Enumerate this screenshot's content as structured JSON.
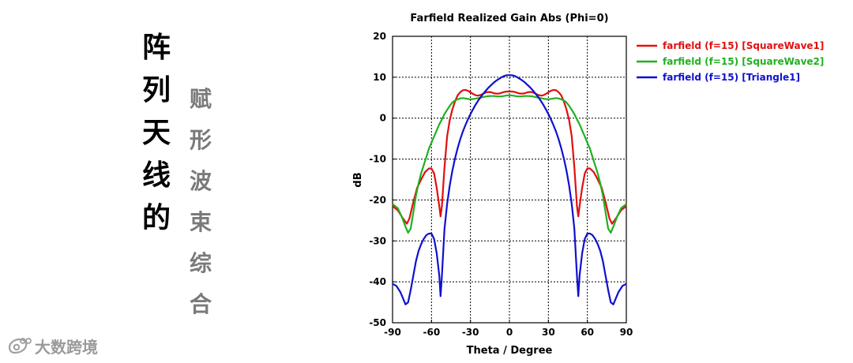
{
  "side_title": {
    "main": [
      "阵",
      "列",
      "天",
      "线",
      "的"
    ],
    "sub": [
      "赋",
      "形",
      "波",
      "束",
      "综",
      "合"
    ]
  },
  "watermark": {
    "text": "大数跨境",
    "logo": "weibo-icon"
  },
  "chart_data": {
    "type": "line",
    "title": "Farfield Realized Gain Abs (Phi=0)",
    "xlabel": "Theta / Degree",
    "ylabel": "dB",
    "xlim": [
      -90,
      90
    ],
    "ylim": [
      -50,
      20
    ],
    "xticks": [
      -90,
      -60,
      -30,
      0,
      30,
      60,
      90
    ],
    "yticks": [
      20,
      10,
      0,
      -10,
      -20,
      -30,
      -40,
      -50
    ],
    "grid": true,
    "legend_position": "right",
    "series": [
      {
        "name": "farfield (f=15) [SquareWave1]",
        "color": "#e01010",
        "x": [
          -90,
          -86,
          -82,
          -79,
          -77,
          -74,
          -71,
          -68,
          -65,
          -62,
          -60,
          -58,
          -56,
          -54,
          -53,
          -52,
          -50,
          -48,
          -46,
          -44,
          -42,
          -40,
          -38,
          -36,
          -34,
          -32,
          -30,
          -28,
          -26,
          -24,
          -22,
          -20,
          -18,
          -16,
          -14,
          -12,
          -10,
          -8,
          -6,
          -4,
          -2,
          0,
          2,
          4,
          6,
          8,
          10,
          12,
          14,
          16,
          18,
          20,
          22,
          24,
          26,
          28,
          30,
          32,
          34,
          36,
          38,
          40,
          42,
          44,
          46,
          48,
          50,
          52,
          53,
          54,
          56,
          58,
          60,
          62,
          65,
          68,
          71,
          74,
          77,
          79,
          82,
          86,
          90
        ],
        "values": [
          -21.5,
          -22.5,
          -24.5,
          -25.8,
          -24.5,
          -20.5,
          -17,
          -15,
          -13.2,
          -12.3,
          -12.3,
          -13.5,
          -17,
          -21.5,
          -24,
          -21.5,
          -12,
          -4.5,
          -0.5,
          2,
          4,
          5.5,
          6.3,
          6.8,
          6.9,
          6.7,
          6.3,
          5.9,
          5.6,
          5.5,
          5.7,
          6,
          6.3,
          6.4,
          6.3,
          6.1,
          6,
          6,
          6.2,
          6.4,
          6.5,
          6.5,
          6.5,
          6.4,
          6.2,
          6,
          6,
          6.1,
          6.3,
          6.4,
          6.3,
          6,
          5.7,
          5.5,
          5.6,
          5.9,
          6.3,
          6.7,
          6.9,
          6.8,
          6.3,
          5.5,
          4,
          2,
          -0.5,
          -4.5,
          -12,
          -21.5,
          -24,
          -21.5,
          -17,
          -13.5,
          -12.3,
          -12.3,
          -13.2,
          -15,
          -17,
          -20.5,
          -24.5,
          -25.8,
          -24.5,
          -22.5,
          -21.5
        ]
      },
      {
        "name": "farfield (f=15) [SquareWave2]",
        "color": "#20b020",
        "x": [
          -90,
          -86,
          -83,
          -80,
          -78,
          -76,
          -74,
          -72,
          -70,
          -68,
          -66,
          -64,
          -62,
          -60,
          -58,
          -56,
          -54,
          -52,
          -50,
          -48,
          -46,
          -44,
          -42,
          -40,
          -38,
          -36,
          -34,
          -32,
          -30,
          -27,
          -24,
          -21,
          -18,
          -15,
          -12,
          -9,
          -6,
          -3,
          0,
          3,
          6,
          9,
          12,
          15,
          18,
          21,
          24,
          27,
          30,
          32,
          34,
          36,
          38,
          40,
          42,
          44,
          46,
          48,
          50,
          52,
          54,
          56,
          58,
          60,
          62,
          64,
          66,
          68,
          70,
          72,
          74,
          76,
          78,
          80,
          83,
          86,
          90
        ],
        "values": [
          -21,
          -22,
          -24,
          -26.5,
          -28,
          -27,
          -23,
          -19,
          -16,
          -13.5,
          -11.5,
          -9.5,
          -7.5,
          -6,
          -4.5,
          -3,
          -1.5,
          -0.3,
          1,
          2,
          3,
          3.8,
          4.3,
          4.6,
          4.8,
          4.9,
          4.8,
          4.7,
          4.6,
          4.7,
          4.9,
          5.1,
          5.3,
          5.4,
          5.4,
          5.3,
          5.3,
          5.5,
          5.6,
          5.5,
          5.3,
          5.3,
          5.4,
          5.4,
          5.3,
          5.1,
          4.9,
          4.7,
          4.6,
          4.7,
          4.8,
          4.9,
          4.8,
          4.6,
          4.3,
          3.8,
          3,
          2,
          1,
          -0.3,
          -1.5,
          -3,
          -4.5,
          -6,
          -7.5,
          -9.5,
          -11.5,
          -13.5,
          -16,
          -19,
          -23,
          -27,
          -28,
          -26.5,
          -24,
          -22,
          -21
        ]
      },
      {
        "name": "farfield (f=15) [Triangle1]",
        "color": "#1010d0",
        "x": [
          -90,
          -87,
          -84,
          -82,
          -80,
          -78,
          -76,
          -74,
          -72,
          -70,
          -68,
          -66,
          -64,
          -62,
          -60,
          -58,
          -56,
          -54,
          -53,
          -52,
          -50,
          -48,
          -46,
          -44,
          -42,
          -40,
          -38,
          -36,
          -34,
          -32,
          -30,
          -28,
          -26,
          -24,
          -22,
          -20,
          -18,
          -16,
          -14,
          -12,
          -10,
          -8,
          -6,
          -4,
          -2,
          0,
          2,
          4,
          6,
          8,
          10,
          12,
          14,
          16,
          18,
          20,
          22,
          24,
          26,
          28,
          30,
          32,
          34,
          36,
          38,
          40,
          42,
          44,
          46,
          48,
          50,
          52,
          53,
          54,
          56,
          58,
          60,
          62,
          64,
          66,
          68,
          70,
          72,
          74,
          76,
          78,
          80,
          82,
          84,
          87,
          90
        ],
        "values": [
          -40.5,
          -41,
          -42.5,
          -44,
          -45.5,
          -45,
          -42,
          -38.5,
          -35,
          -32.5,
          -30.8,
          -29.5,
          -28.6,
          -28.2,
          -28.2,
          -29.5,
          -33,
          -38.5,
          -43.5,
          -38.5,
          -27,
          -21,
          -16.5,
          -13,
          -10,
          -7.5,
          -5.3,
          -3.4,
          -1.8,
          -0.3,
          1,
          2.2,
          3.3,
          4.3,
          5.2,
          6,
          6.8,
          7.5,
          8.1,
          8.7,
          9.2,
          9.6,
          10,
          10.3,
          10.5,
          10.5,
          10.5,
          10.3,
          10,
          9.6,
          9.2,
          8.7,
          8.1,
          7.5,
          6.8,
          6,
          5.2,
          4.3,
          3.3,
          2.2,
          1,
          -0.3,
          -1.8,
          -3.4,
          -5.3,
          -7.5,
          -10,
          -13,
          -16.5,
          -21,
          -27,
          -38.5,
          -43.5,
          -38.5,
          -33,
          -29.5,
          -28.2,
          -28.2,
          -28.6,
          -29.5,
          -30.8,
          -32.5,
          -35,
          -38.5,
          -42,
          -45,
          -45.5,
          -44,
          -42.5,
          -41,
          -40.5
        ]
      }
    ]
  }
}
